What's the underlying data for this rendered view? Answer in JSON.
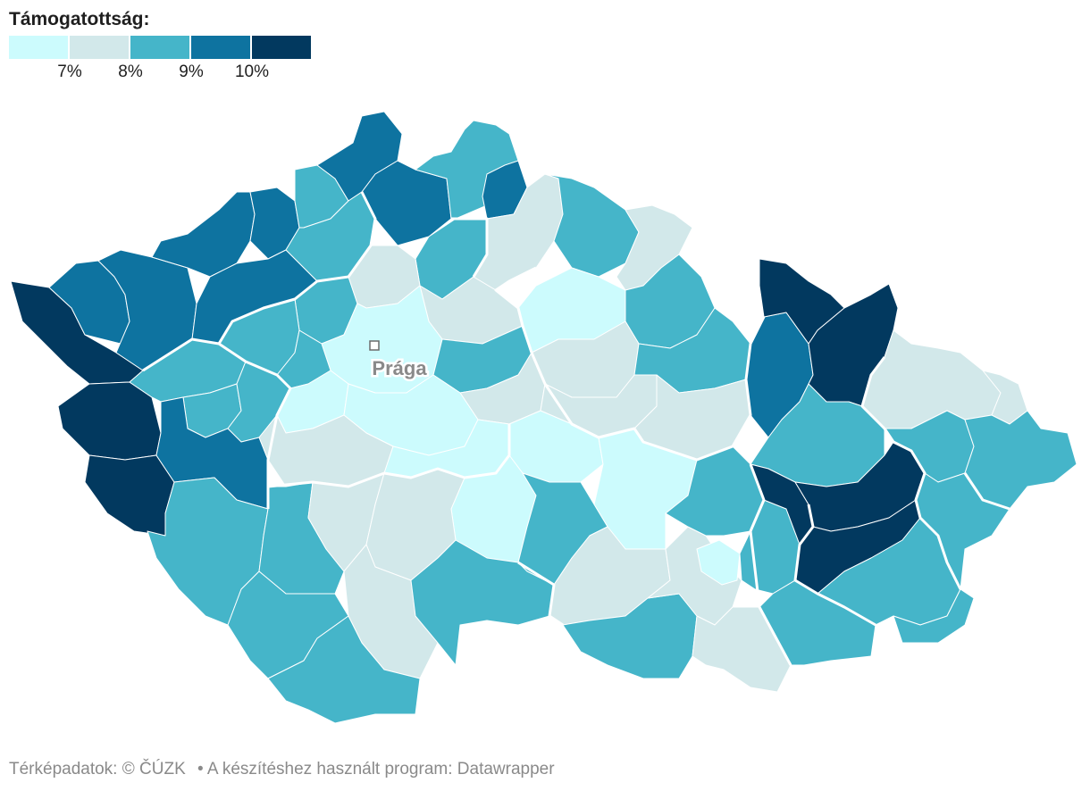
{
  "legend": {
    "title": "Támogatottság:",
    "colors": [
      "#ccfbfd",
      "#d2e8ea",
      "#45b5c9",
      "#0e73a0",
      "#02395f"
    ],
    "ticks": [
      "7%",
      "8%",
      "9%",
      "10%"
    ]
  },
  "map": {
    "city_label": "Prága",
    "border_color": "#ffffff"
  },
  "footer": {
    "map_data": "Térképadatok: © ČÚZK",
    "separator": "•",
    "program": "A készítéshez használt program: Datawrapper"
  }
}
